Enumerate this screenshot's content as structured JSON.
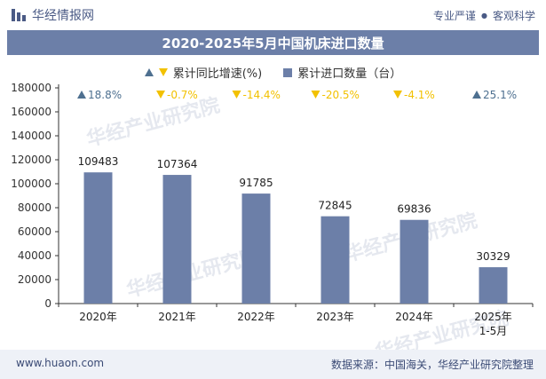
{
  "header": {
    "brand": "华经情报网",
    "tagline_left": "专业严谨",
    "tagline_right": "客观科学"
  },
  "footer": {
    "site": "www.huaon.com",
    "source": "数据来源：中国海关，华经产业研究院整理"
  },
  "watermark": "华经产业研究院",
  "colors": {
    "bar": "#6c7fa8",
    "title_bg": "#6c7fa8",
    "up": "#4e7090",
    "down": "#f2c100"
  },
  "chart_data": {
    "type": "bar",
    "title": "2020-2025年5月中国机床进口数量",
    "categories": [
      "2020年",
      "2021年",
      "2022年",
      "2023年",
      "2024年",
      "2025年\n1-5月"
    ],
    "series": [
      {
        "name": "累计进口数量（台）",
        "type": "bar",
        "values": [
          109483,
          107364,
          91785,
          72845,
          69836,
          30329
        ]
      },
      {
        "name": "累计同比增速(%)",
        "type": "marker",
        "values": [
          18.8,
          -0.7,
          -14.4,
          -20.5,
          -4.1,
          25.1
        ],
        "labels": [
          "18.8%",
          "-0.7%",
          "-14.4%",
          "-20.5%",
          "-4.1%",
          "25.1%"
        ]
      }
    ],
    "ylim": [
      0,
      180000
    ],
    "yticks": [
      0,
      20000,
      40000,
      60000,
      80000,
      100000,
      120000,
      140000,
      160000,
      180000
    ],
    "legend_position": "top-center",
    "grid": false
  }
}
